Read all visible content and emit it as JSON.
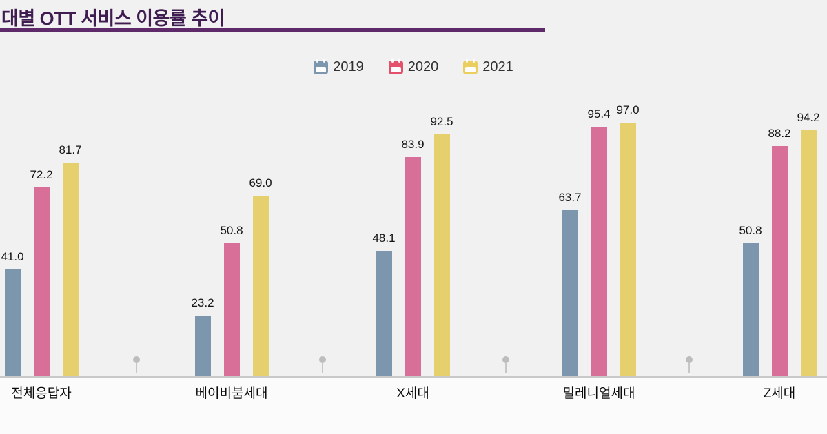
{
  "title": "대별 OTT 서비스 이용률 추이",
  "colors": {
    "title_text": "#3f1d50",
    "title_underline": "#5f2a6a",
    "axis_line": "#c9c9c9",
    "pin": "#bdbdbd",
    "background": "#f1f1f2"
  },
  "legend": {
    "items": [
      {
        "label": "2019",
        "icon": "calendar-icon",
        "color": "#7c97ad"
      },
      {
        "label": "2020",
        "icon": "calendar-icon",
        "color": "#e4516b"
      },
      {
        "label": "2021",
        "icon": "calendar-icon",
        "color": "#eace5f"
      }
    ]
  },
  "chart_data": {
    "type": "bar",
    "title": "대별 OTT 서비스 이용률 추이",
    "categories": [
      "전체응답자",
      "베이비붐세대",
      "X세대",
      "밀레니얼세대",
      "Z세대"
    ],
    "series": [
      {
        "name": "2019",
        "color": "#7c97ad",
        "values": [
          41.0,
          23.2,
          48.1,
          63.7,
          50.8
        ]
      },
      {
        "name": "2020",
        "color": "#d86f99",
        "values": [
          72.2,
          50.8,
          83.9,
          95.4,
          88.2
        ]
      },
      {
        "name": "2021",
        "color": "#e6cf6d",
        "values": [
          81.7,
          69.0,
          92.5,
          97.0,
          94.2
        ]
      }
    ],
    "ylim": [
      0,
      100
    ],
    "unit": "%",
    "value_format": "one_decimal",
    "legend_position": "top-center",
    "grid": false
  }
}
